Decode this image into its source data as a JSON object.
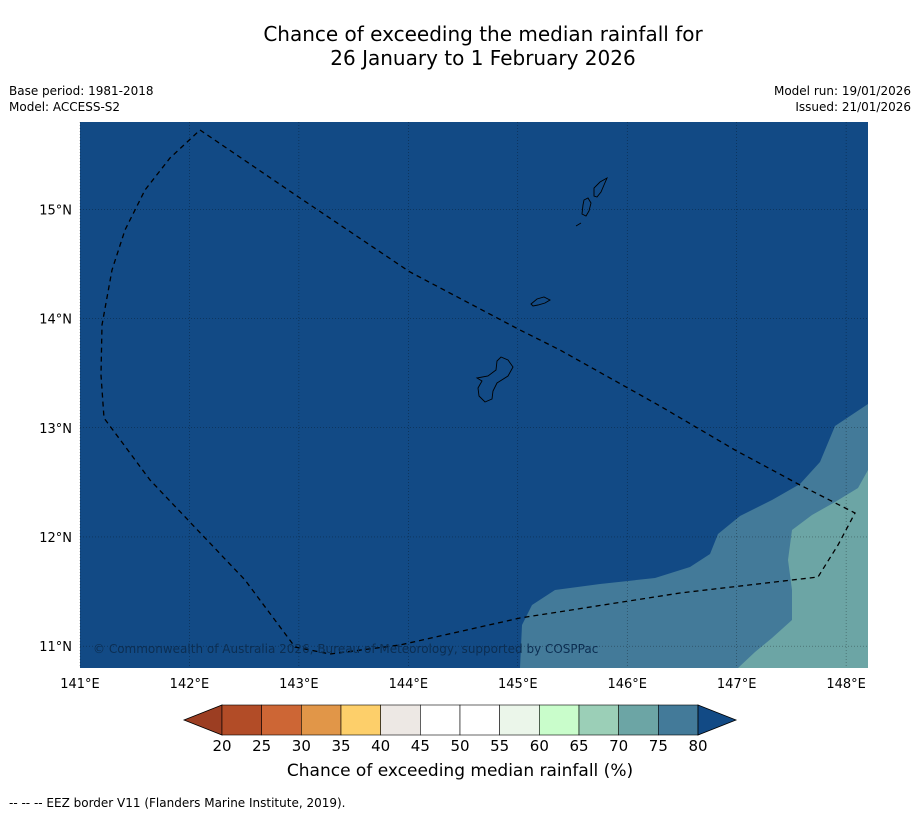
{
  "title": {
    "line1": "Chance of exceeding the median rainfall for",
    "line2": "26 January to 1 February 2026"
  },
  "meta": {
    "base_period": "Base period: 1981-2018",
    "model": "Model: ACCESS-S2",
    "model_run": "Model run: 19/01/2026",
    "issued": "Issued: 21/01/2026"
  },
  "map": {
    "lon_range": [
      141,
      148.2
    ],
    "lat_range": [
      10.8,
      15.8
    ],
    "lon_ticks": [
      {
        "value": 141,
        "label": "141°E"
      },
      {
        "value": 142,
        "label": "142°E"
      },
      {
        "value": 143,
        "label": "143°E"
      },
      {
        "value": 144,
        "label": "144°E"
      },
      {
        "value": 145,
        "label": "145°E"
      },
      {
        "value": 146,
        "label": "146°E"
      },
      {
        "value": 147,
        "label": "147°E"
      },
      {
        "value": 148,
        "label": "148°E"
      }
    ],
    "lat_ticks": [
      {
        "value": 11,
        "label": "11°N"
      },
      {
        "value": 12,
        "label": "12°N"
      },
      {
        "value": 13,
        "label": "13°N"
      },
      {
        "value": 14,
        "label": "14°N"
      },
      {
        "value": 15,
        "label": "15°N"
      }
    ],
    "background_band": "80+",
    "colors": {
      "band_80_plus": "#124a85",
      "band_75_80": "#437a99",
      "band_70_75": "#6ca5a5",
      "grid": "#000000",
      "eez": "#000000"
    },
    "copyright": "© Commonwealth of Australia 2026, Bureau of Meteorology, supported by COSPPac"
  },
  "colorbar": {
    "ticks": [
      "20",
      "25",
      "30",
      "35",
      "40",
      "45",
      "50",
      "55",
      "60",
      "65",
      "70",
      "75",
      "80"
    ],
    "colors": [
      "#b24c27",
      "#cd6635",
      "#e19648",
      "#fdcf6a",
      "#ede8e4",
      "#ffffff",
      "#ffffff",
      "#ebf6ea",
      "#c9fdcb",
      "#9bcfb7",
      "#6ca5a5",
      "#437a99"
    ],
    "under_color": "#9c3e22",
    "over_color": "#124a85",
    "label": "Chance of exceeding median rainfall (%)"
  },
  "footnote": "--  --  -- EEZ border V11 (Flanders Marine Institute, 2019)."
}
